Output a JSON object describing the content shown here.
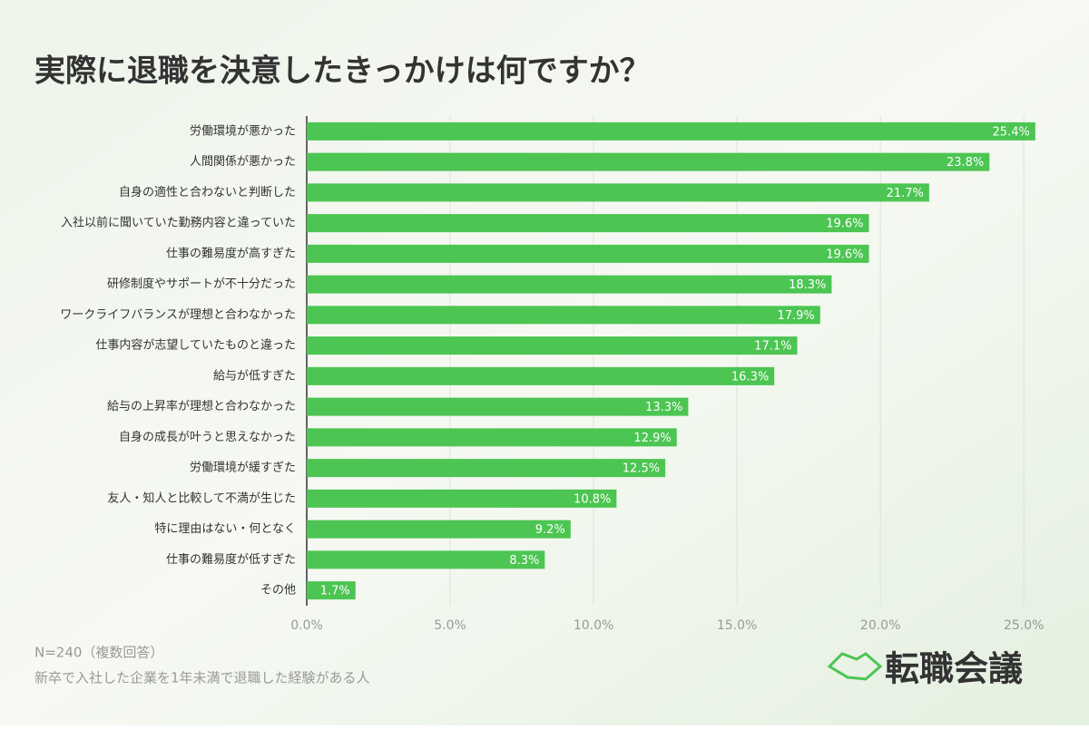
{
  "chart_data": {
    "type": "hbar",
    "title": "実際に退職を決意したきっかけは何ですか？",
    "categories": [
      "労働環境が悪かった",
      "人間関係が悪かった",
      "自身の適性と合わないと判断した",
      "入社以前に聞いていた勤務内容と違っていた",
      "仕事の難易度が高すぎた",
      "研修制度やサポートが不十分だった",
      "ワークライフバランスが理想と合わなかった",
      "仕事内容が志望していたものと違った",
      "給与が低すぎた",
      "給与の上昇率が理想と合わなかった",
      "自身の成長が叶うと思えなかった",
      "労働環境が緩すぎた",
      "友人・知人と比較して不満が生じた",
      "特に理由はない・何となく",
      "仕事の難易度が低すぎた",
      "その他"
    ],
    "values": [
      25.4,
      23.8,
      21.7,
      19.6,
      19.6,
      18.3,
      17.9,
      17.1,
      16.3,
      13.3,
      12.9,
      12.5,
      10.8,
      9.2,
      8.3,
      1.7
    ],
    "value_labels": [
      "25.4%",
      "23.8%",
      "21.7%",
      "19.6%",
      "19.6%",
      "18.3%",
      "17.9%",
      "17.1%",
      "16.3%",
      "13.3%",
      "12.9%",
      "12.5%",
      "10.8%",
      "9.2%",
      "8.3%",
      "1.7%"
    ],
    "color": "#4cc552",
    "xlim": [
      0,
      25.5
    ],
    "xticks": [
      {
        "value": 0,
        "label": "0.0%"
      },
      {
        "value": 5,
        "label": "5.0%"
      },
      {
        "value": 10,
        "label": "10.0%"
      },
      {
        "value": 15,
        "label": "15.0%"
      },
      {
        "value": 20,
        "label": "20.0%"
      },
      {
        "value": 25,
        "label": "25.0%"
      }
    ],
    "grid": true
  },
  "footer": {
    "note": "N=240（複数回答）",
    "population": "新卒で入社した企業を1年未満で退職した経験がある人"
  },
  "logo": {
    "text": "転職会議"
  }
}
